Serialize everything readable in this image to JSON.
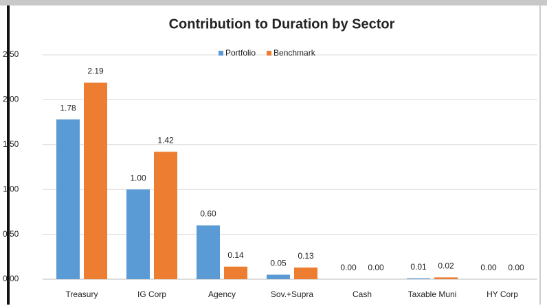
{
  "chart_data": {
    "type": "bar",
    "title": "Contribution to Duration by Sector",
    "categories": [
      "Treasury",
      "IG Corp",
      "Agency",
      "Sov.+Supra",
      "Cash",
      "Taxable Muni",
      "HY Corp"
    ],
    "series": [
      {
        "name": "Portfolio",
        "color": "#5b9bd5",
        "values": [
          1.78,
          1.0,
          0.6,
          0.05,
          0.0,
          0.01,
          0.0
        ],
        "value_labels": [
          "1.78",
          "1.00",
          "0.60",
          "0.05",
          "0.00",
          "0.01",
          "0.00"
        ]
      },
      {
        "name": "Benchmark",
        "color": "#ed7d31",
        "values": [
          2.19,
          1.42,
          0.14,
          0.13,
          0.0,
          0.02,
          0.0
        ],
        "value_labels": [
          "2.19",
          "1.42",
          "0.14",
          "0.13",
          "0.00",
          "0.02",
          "0.00"
        ]
      }
    ],
    "ylim": [
      0,
      2.5
    ],
    "yticks": [
      {
        "value": 0,
        "label": "0.00"
      },
      {
        "value": 0.5,
        "label": "0.50"
      },
      {
        "value": 1,
        "label": "1.00"
      },
      {
        "value": 1.5,
        "label": "1.50"
      },
      {
        "value": 2,
        "label": "2.00"
      },
      {
        "value": 2.5,
        "label": "2.50"
      }
    ],
    "grid": true,
    "legend": "top"
  }
}
